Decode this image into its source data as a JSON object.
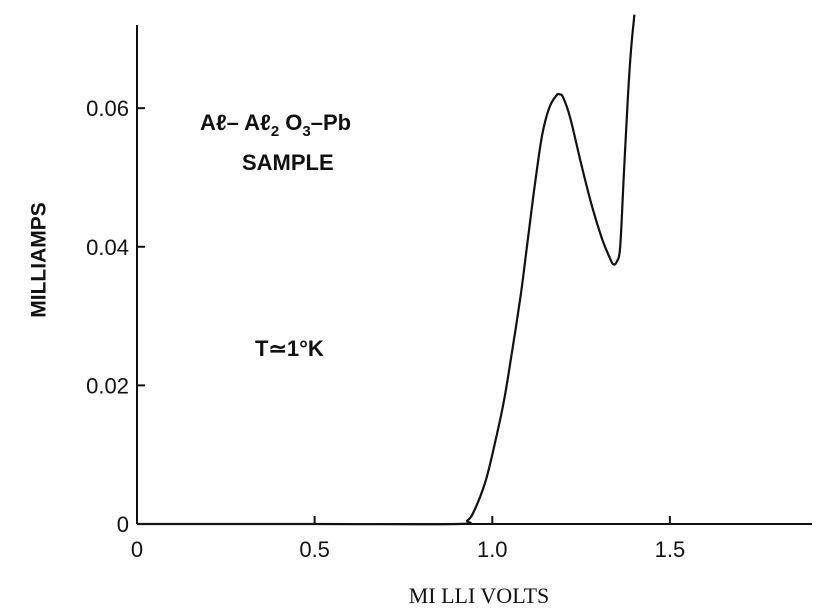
{
  "chart_data": {
    "type": "line",
    "title": "",
    "xlabel": "MI LLI VOLTS",
    "ylabel": "MILLIAMPS",
    "xlim": [
      0,
      1.9
    ],
    "ylim": [
      0,
      0.072
    ],
    "x_ticks": [
      0,
      0.5,
      1.0,
      1.5
    ],
    "x_tick_labels": [
      "0",
      "0.5",
      "1.0",
      "1.5"
    ],
    "y_ticks": [
      0,
      0.02,
      0.04,
      0.06
    ],
    "y_tick_labels": [
      "0",
      "0.02",
      "0.04",
      "0.06"
    ],
    "grid": false,
    "annotations": {
      "sample_line1": {
        "a1": "Aℓ",
        "a2": "– Aℓ",
        "s1": "2",
        "a3": " O",
        "s2": "3",
        "a4": "–Pb"
      },
      "sample_line2": "SAMPLE",
      "temperature": "T≃1°K"
    },
    "series": [
      {
        "name": "",
        "x": [
          0.0,
          0.5,
          0.9,
          0.93,
          0.95,
          0.98,
          1.0,
          1.03,
          1.05,
          1.08,
          1.1,
          1.12,
          1.14,
          1.16,
          1.18,
          1.19,
          1.2,
          1.22,
          1.25,
          1.28,
          1.31,
          1.33,
          1.34,
          1.35,
          1.36,
          1.37,
          1.38,
          1.39,
          1.4
        ],
        "y": [
          0.0,
          0.0,
          0.0,
          0.0005,
          0.002,
          0.006,
          0.01,
          0.017,
          0.023,
          0.033,
          0.041,
          0.049,
          0.056,
          0.06,
          0.0618,
          0.062,
          0.0615,
          0.0585,
          0.052,
          0.046,
          0.041,
          0.0385,
          0.0375,
          0.0378,
          0.04,
          0.05,
          0.06,
          0.068,
          0.0735
        ]
      }
    ]
  }
}
